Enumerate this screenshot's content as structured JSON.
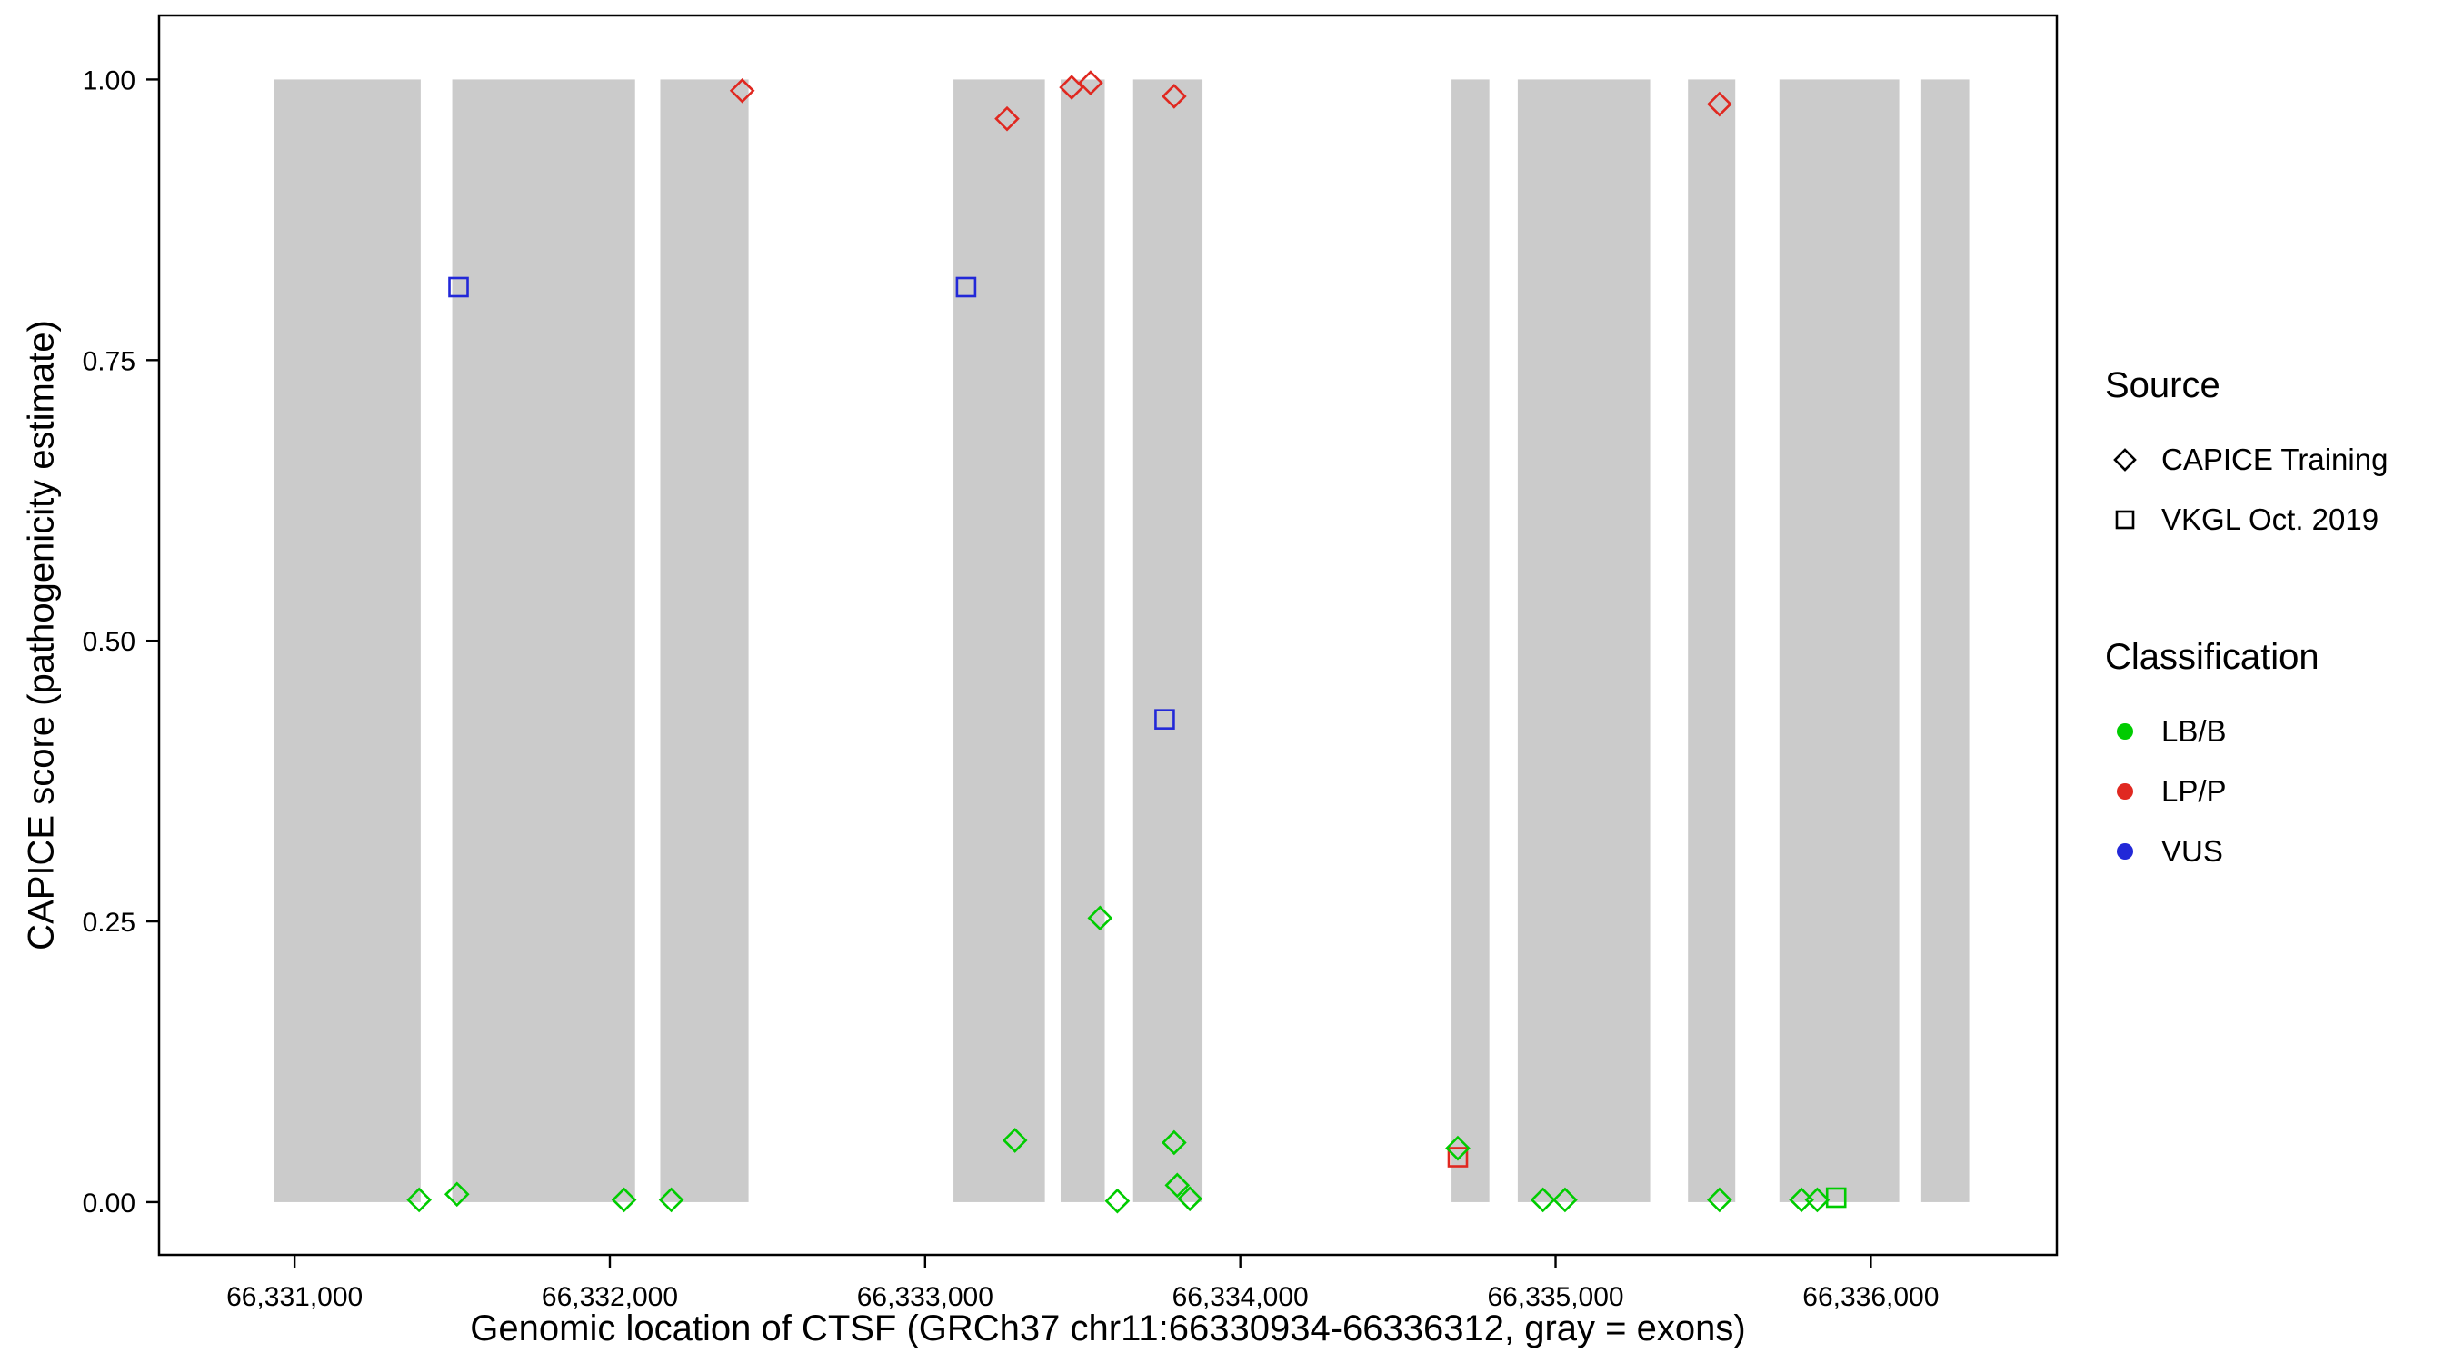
{
  "chart_data": {
    "type": "scatter",
    "title": "",
    "xlabel": "Genomic location of CTSF (GRCh37 chr11:66330934-66336312, gray = exons)",
    "ylabel": "CAPICE score (pathogenicity estimate)",
    "grid": false,
    "legend_position": "right",
    "x_ticks": [
      66331000,
      66332000,
      66333000,
      66334000,
      66335000,
      66336000
    ],
    "x_tick_labels": [
      "66,331,000",
      "66,332,000",
      "66,333,000",
      "66,334,000",
      "66,335,000",
      "66,336,000"
    ],
    "y_ticks": [
      0,
      0.25,
      0.5,
      0.75,
      1
    ],
    "y_tick_labels": [
      "0.00",
      "0.25",
      "0.50",
      "0.75",
      "1.00"
    ],
    "x_range": [
      66330570,
      66336590
    ],
    "y_range": [
      -0.047,
      1.057
    ],
    "exon_color": "#CBCBCB",
    "colors": {
      "LB/B": "#00CC00",
      "LP/P": "#E02820",
      "VUS": "#2228D8"
    },
    "legend": {
      "source": {
        "title": "Source",
        "items": [
          {
            "label": "CAPICE Training",
            "shape": "diamond"
          },
          {
            "label": "VKGL Oct. 2019",
            "shape": "square"
          }
        ]
      },
      "classification": {
        "title": "Classification",
        "items": [
          {
            "label": "LB/B"
          },
          {
            "label": "LP/P"
          },
          {
            "label": "VUS"
          }
        ]
      }
    },
    "exons": [
      [
        66330934,
        66331400
      ],
      [
        66331500,
        66332080
      ],
      [
        66332160,
        66332440
      ],
      [
        66333090,
        66333380
      ],
      [
        66333430,
        66333570
      ],
      [
        66333660,
        66333880
      ],
      [
        66334670,
        66334790
      ],
      [
        66334880,
        66335300
      ],
      [
        66335420,
        66335570
      ],
      [
        66335710,
        66336090
      ],
      [
        66336160,
        66336312
      ]
    ],
    "points": [
      {
        "x": 66331395,
        "y": 0.002,
        "shape": "diamond",
        "source": "CAPICE Training",
        "classification": "LB/B"
      },
      {
        "x": 66331515,
        "y": 0.007,
        "shape": "diamond",
        "source": "CAPICE Training",
        "classification": "LB/B"
      },
      {
        "x": 66331520,
        "y": 0.815,
        "shape": "square",
        "source": "VKGL Oct. 2019",
        "classification": "VUS"
      },
      {
        "x": 66332045,
        "y": 0.002,
        "shape": "diamond",
        "source": "CAPICE Training",
        "classification": "LB/B"
      },
      {
        "x": 66332195,
        "y": 0.002,
        "shape": "diamond",
        "source": "CAPICE Training",
        "classification": "LB/B"
      },
      {
        "x": 66332420,
        "y": 0.99,
        "shape": "diamond",
        "source": "CAPICE Training",
        "classification": "LP/P"
      },
      {
        "x": 66333130,
        "y": 0.815,
        "shape": "square",
        "source": "VKGL Oct. 2019",
        "classification": "VUS"
      },
      {
        "x": 66333260,
        "y": 0.965,
        "shape": "diamond",
        "source": "CAPICE Training",
        "classification": "LP/P"
      },
      {
        "x": 66333285,
        "y": 0.055,
        "shape": "diamond",
        "source": "CAPICE Training",
        "classification": "LB/B"
      },
      {
        "x": 66333465,
        "y": 0.993,
        "shape": "diamond",
        "source": "CAPICE Training",
        "classification": "LP/P"
      },
      {
        "x": 66333525,
        "y": 0.997,
        "shape": "diamond",
        "source": "CAPICE Training",
        "classification": "LP/P"
      },
      {
        "x": 66333555,
        "y": 0.253,
        "shape": "diamond",
        "source": "CAPICE Training",
        "classification": "LB/B"
      },
      {
        "x": 66333610,
        "y": 0.001,
        "shape": "diamond",
        "source": "CAPICE Training",
        "classification": "LB/B"
      },
      {
        "x": 66333760,
        "y": 0.43,
        "shape": "square",
        "source": "VKGL Oct. 2019",
        "classification": "VUS"
      },
      {
        "x": 66333790,
        "y": 0.985,
        "shape": "diamond",
        "source": "CAPICE Training",
        "classification": "LP/P"
      },
      {
        "x": 66333790,
        "y": 0.053,
        "shape": "diamond",
        "source": "CAPICE Training",
        "classification": "LB/B"
      },
      {
        "x": 66333800,
        "y": 0.015,
        "shape": "diamond",
        "source": "CAPICE Training",
        "classification": "LB/B"
      },
      {
        "x": 66333840,
        "y": 0.003,
        "shape": "diamond",
        "source": "CAPICE Training",
        "classification": "LB/B"
      },
      {
        "x": 66334690,
        "y": 0.04,
        "shape": "square",
        "source": "VKGL Oct. 2019",
        "classification": "LP/P"
      },
      {
        "x": 66334690,
        "y": 0.048,
        "shape": "diamond",
        "source": "CAPICE Training",
        "classification": "LB/B"
      },
      {
        "x": 66334960,
        "y": 0.002,
        "shape": "diamond",
        "source": "CAPICE Training",
        "classification": "LB/B"
      },
      {
        "x": 66335030,
        "y": 0.002,
        "shape": "diamond",
        "source": "CAPICE Training",
        "classification": "LB/B"
      },
      {
        "x": 66335520,
        "y": 0.978,
        "shape": "diamond",
        "source": "CAPICE Training",
        "classification": "LP/P"
      },
      {
        "x": 66335520,
        "y": 0.002,
        "shape": "diamond",
        "source": "CAPICE Training",
        "classification": "LB/B"
      },
      {
        "x": 66335780,
        "y": 0.002,
        "shape": "diamond",
        "source": "CAPICE Training",
        "classification": "LB/B"
      },
      {
        "x": 66335830,
        "y": 0.002,
        "shape": "diamond",
        "source": "CAPICE Training",
        "classification": "LB/B"
      },
      {
        "x": 66335890,
        "y": 0.004,
        "shape": "square",
        "source": "VKGL Oct. 2019",
        "classification": "LB/B"
      }
    ]
  }
}
